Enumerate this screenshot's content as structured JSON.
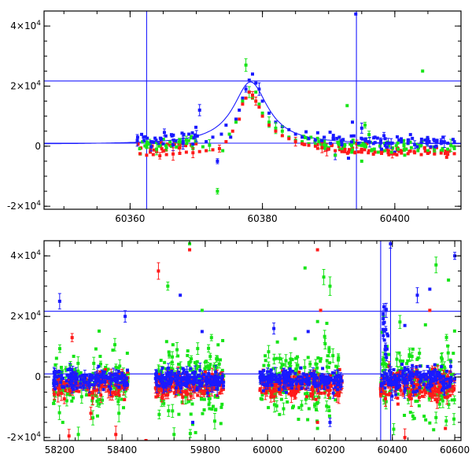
{
  "chart_data": [
    {
      "type": "scatter",
      "title": "",
      "xlabel": "",
      "ylabel": "",
      "xlim": [
        60347,
        60410
      ],
      "ylim": [
        -21000,
        45000
      ],
      "x_ticks": [
        {
          "value": 60360,
          "label": "60360"
        },
        {
          "value": 60380,
          "label": "60380"
        },
        {
          "value": 60400,
          "label": "60400"
        }
      ],
      "y_ticks": [
        {
          "value": -20000,
          "base": "-2",
          "exp": "4"
        },
        {
          "value": 0,
          "base": "0",
          "exp": ""
        },
        {
          "value": 20000,
          "base": "2",
          "exp": "4"
        },
        {
          "value": 40000,
          "base": "4",
          "exp": "4"
        }
      ],
      "vlines": [
        60362.5,
        60394.2
      ],
      "hlines": [
        1000,
        21700
      ],
      "model_curve": {
        "t0": 60378.2,
        "amplitude": 20800,
        "baseline": 600,
        "width": 3.2
      },
      "series": [
        {
          "color": "#1a1aff",
          "points": [
            [
              60363.2,
              -200
            ],
            [
              60365,
              800
            ],
            [
              60366.5,
              400
            ],
            [
              60368,
              900
            ],
            [
              60369.5,
              700
            ],
            [
              60370.5,
              12000
            ],
            [
              60371.5,
              1500
            ],
            [
              60372.5,
              3000
            ],
            [
              60373.2,
              -5000
            ],
            [
              60373.8,
              4000
            ],
            [
              60374.5,
              7000
            ],
            [
              60375.2,
              3000
            ],
            [
              60376,
              9000
            ],
            [
              60376.5,
              12000
            ],
            [
              60377,
              16000
            ],
            [
              60377.5,
              19000
            ],
            [
              60378,
              22000
            ],
            [
              60378.5,
              24000
            ],
            [
              60379,
              21000
            ],
            [
              60379.5,
              19000
            ],
            [
              60380,
              15000
            ],
            [
              60381,
              11000
            ],
            [
              60382,
              8000
            ],
            [
              60383,
              6500
            ],
            [
              60384,
              5500
            ],
            [
              60385,
              4000
            ],
            [
              60386,
              3000
            ],
            [
              60387,
              2500
            ],
            [
              60388,
              2000
            ],
            [
              60389,
              1500
            ],
            [
              60390,
              -1000
            ],
            [
              60391,
              -3000
            ],
            [
              60392,
              500
            ],
            [
              60393,
              -4000
            ],
            [
              60393.6,
              8000
            ],
            [
              60394.5,
              1000
            ],
            [
              60395,
              6000
            ],
            [
              60396,
              1500
            ],
            [
              60397,
              3000
            ],
            [
              60398,
              -1000
            ],
            [
              60399,
              1000
            ],
            [
              60400,
              -2000
            ],
            [
              60401,
              1500
            ],
            [
              60402,
              2000
            ],
            [
              60403,
              500
            ],
            [
              60404,
              1200
            ],
            [
              60405,
              2000
            ],
            [
              60406,
              1800
            ],
            [
              60407,
              1500
            ],
            [
              60408,
              1000
            ],
            [
              60409,
              1500
            ],
            [
              60394.1,
              44000
            ]
          ]
        },
        {
          "color": "#17e417",
          "points": [
            [
              60362.5,
              -400
            ],
            [
              60364,
              -1000
            ],
            [
              60365.5,
              -500
            ],
            [
              60367,
              -300
            ],
            [
              60368.5,
              2000
            ],
            [
              60369.5,
              -800
            ],
            [
              60371,
              -200
            ],
            [
              60372,
              300
            ],
            [
              60373.2,
              -15000
            ],
            [
              60374,
              -1500
            ],
            [
              60375,
              4000
            ],
            [
              60376,
              8000
            ],
            [
              60377,
              15000
            ],
            [
              60377.5,
              27000
            ],
            [
              60378,
              18000
            ],
            [
              60378.5,
              16000
            ],
            [
              60379,
              18000
            ],
            [
              60379.5,
              14000
            ],
            [
              60380,
              11000
            ],
            [
              60381,
              8000
            ],
            [
              60382,
              6000
            ],
            [
              60383,
              5000
            ],
            [
              60384,
              3000
            ],
            [
              60385,
              2000
            ],
            [
              60386,
              1500
            ],
            [
              60387,
              800
            ],
            [
              60388,
              500
            ],
            [
              60389,
              300
            ],
            [
              60390,
              -500
            ],
            [
              60391,
              -3000
            ],
            [
              60392,
              -1000
            ],
            [
              60392.8,
              13500
            ],
            [
              60393.5,
              -2000
            ],
            [
              60395,
              -5000
            ],
            [
              60395.5,
              7000
            ],
            [
              60396.5,
              -1500
            ],
            [
              60397.5,
              -2000
            ],
            [
              60398.5,
              -1500
            ],
            [
              60399.5,
              -2000
            ],
            [
              60400.5,
              -1000
            ],
            [
              60401.5,
              -3000
            ],
            [
              60402.5,
              -500
            ],
            [
              60403.5,
              -1500
            ],
            [
              60404.2,
              25000
            ],
            [
              60405,
              -1500
            ],
            [
              60406,
              -2000
            ],
            [
              60407,
              -1500
            ],
            [
              60408,
              -1000
            ],
            [
              60409,
              -800
            ]
          ]
        },
        {
          "color": "#ff1a1a",
          "points": [
            [
              60361.5,
              -2500
            ],
            [
              60362.5,
              -3000
            ],
            [
              60363.5,
              -2800
            ],
            [
              60364.5,
              -3200
            ],
            [
              60365.5,
              -2800
            ],
            [
              60366.5,
              -2600
            ],
            [
              60367.5,
              -2400
            ],
            [
              60368.5,
              -2000
            ],
            [
              60369.5,
              -2200
            ],
            [
              60370.5,
              -1800
            ],
            [
              60371.5,
              -1500
            ],
            [
              60372.5,
              -1200
            ],
            [
              60373.5,
              -800
            ],
            [
              60374.5,
              1500
            ],
            [
              60375.5,
              5000
            ],
            [
              60376.5,
              9000
            ],
            [
              60377,
              14000
            ],
            [
              60377.5,
              16000
            ],
            [
              60378,
              18000
            ],
            [
              60378.5,
              17000
            ],
            [
              60379,
              15000
            ],
            [
              60379.5,
              13000
            ],
            [
              60380,
              10000
            ],
            [
              60381,
              7000
            ],
            [
              60382,
              5000
            ],
            [
              60383,
              3500
            ],
            [
              60384,
              2500
            ],
            [
              60385,
              1500
            ],
            [
              60386,
              800
            ],
            [
              60387,
              300
            ],
            [
              60388,
              0
            ],
            [
              60389,
              -500
            ],
            [
              60390,
              -1000
            ],
            [
              60391,
              -1500
            ],
            [
              60392,
              -1800
            ],
            [
              60393,
              -2000
            ],
            [
              60394,
              -2200
            ],
            [
              60395,
              -2000
            ],
            [
              60396,
              -2200
            ],
            [
              60397,
              -2000
            ],
            [
              60398,
              -2400
            ],
            [
              60399,
              -2200
            ],
            [
              60400,
              -2600
            ],
            [
              60401,
              -2300
            ],
            [
              60402,
              -2500
            ],
            [
              60403,
              -2200
            ],
            [
              60404,
              -2800
            ],
            [
              60405,
              -2400
            ],
            [
              60406,
              -2600
            ],
            [
              60407,
              -2300
            ],
            [
              60408,
              -2700
            ],
            [
              60409,
              -2500
            ]
          ]
        }
      ]
    },
    {
      "type": "scatter",
      "title": "",
      "xlabel": "",
      "ylabel": "",
      "xlim": [
        58150,
        60620
      ],
      "broken_axis": {
        "from": 58460,
        "to": 59620,
        "display_gap": 0.02
      },
      "ylim": [
        -21000,
        45000
      ],
      "x_ticks": [
        {
          "value": 58200,
          "label": "58200"
        },
        {
          "value": 58400,
          "label": "58400"
        },
        {
          "value": 59800,
          "label": "59800"
        },
        {
          "value": 60000,
          "label": "60000"
        },
        {
          "value": 60200,
          "label": "60200"
        },
        {
          "value": 60400,
          "label": "60400"
        },
        {
          "value": 60600,
          "label": "60600"
        }
      ],
      "y_ticks": [
        {
          "value": -20000,
          "base": "-2",
          "exp": "4"
        },
        {
          "value": 0,
          "base": "0",
          "exp": ""
        },
        {
          "value": 20000,
          "base": "2",
          "exp": "4"
        },
        {
          "value": 40000,
          "base": "4",
          "exp": "4"
        }
      ],
      "vlines": [
        60362.5,
        60394.2
      ],
      "hlines": [
        1000,
        21700
      ],
      "seasons": [
        {
          "start": 58180,
          "end": 58420,
          "n": 150,
          "spread_blue": 1500,
          "spread_red": 2000,
          "spread_green": 4000
        },
        {
          "start": 59640,
          "end": 59860,
          "n": 170,
          "spread_blue": 1500,
          "spread_red": 2000,
          "spread_green": 5000
        },
        {
          "start": 59975,
          "end": 60240,
          "n": 190,
          "spread_blue": 1500,
          "spread_red": 2000,
          "spread_green": 5000
        },
        {
          "start": 60362,
          "end": 60600,
          "n": 170,
          "spread_blue": 1800,
          "spread_red": 2200,
          "spread_green": 5000
        }
      ],
      "outliers": [
        {
          "color": "#1a1aff",
          "points": [
            [
              58200,
              25000
            ],
            [
              58410,
              20000
            ],
            [
              59720,
              27000
            ],
            [
              59790,
              15000
            ],
            [
              60130,
              15000
            ],
            [
              60020,
              16000
            ],
            [
              60440,
              17000
            ],
            [
              60480,
              27000
            ],
            [
              60520,
              29000
            ],
            [
              60600,
              40000
            ],
            [
              60394,
              44000
            ],
            [
              60380,
              22000
            ],
            [
              60200,
              -15000
            ],
            [
              59760,
              -15000
            ]
          ]
        },
        {
          "color": "#17e417",
          "points": [
            [
              58210,
              -15000
            ],
            [
              58260,
              -19000
            ],
            [
              58320,
              -8000
            ],
            [
              58390,
              -12000
            ],
            [
              59680,
              30000
            ],
            [
              59790,
              22000
            ],
            [
              59820,
              13000
            ],
            [
              60120,
              36000
            ],
            [
              60180,
              33000
            ],
            [
              60200,
              30000
            ],
            [
              60540,
              37000
            ],
            [
              60580,
              32000
            ],
            [
              59700,
              -19000
            ],
            [
              60160,
              -17000
            ],
            [
              60480,
              -8000
            ],
            [
              59750,
              44000
            ]
          ]
        },
        {
          "color": "#ff1a1a",
          "points": [
            [
              58240,
              13000
            ],
            [
              58300,
              -12000
            ],
            [
              58380,
              -19000
            ],
            [
              59750,
              42000
            ],
            [
              59650,
              35000
            ],
            [
              60160,
              42000
            ],
            [
              60170,
              22000
            ],
            [
              60520,
              22000
            ],
            [
              60570,
              -17000
            ],
            [
              60440,
              -20000
            ],
            [
              60160,
              -15000
            ],
            [
              59610,
              -21000
            ],
            [
              58230,
              -19500
            ]
          ]
        }
      ]
    }
  ]
}
